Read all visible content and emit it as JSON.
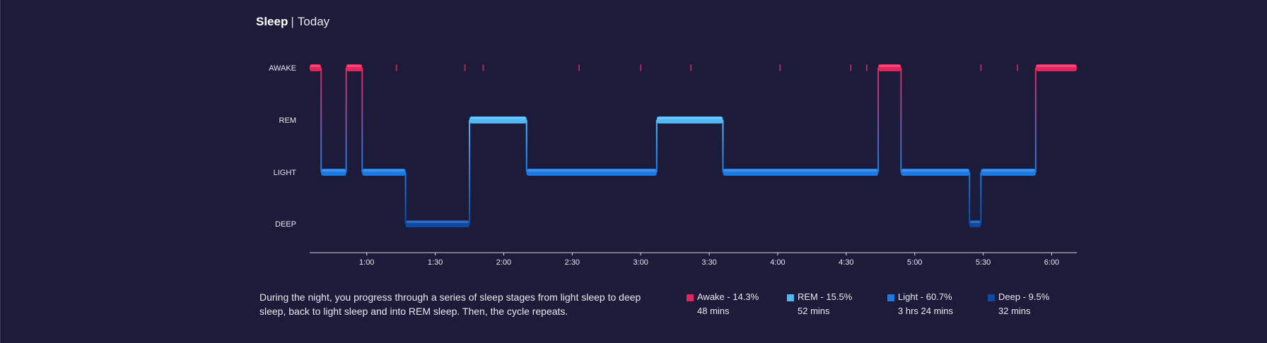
{
  "header": {
    "title": "Sleep",
    "separator": "|",
    "subtitle": "Today"
  },
  "description": "During the night, you progress through a series of sleep stages from light sleep to deep sleep, back to light sleep and into REM sleep. Then, the cycle repeats.",
  "legend": [
    {
      "label": "Awake - 14.3%",
      "duration": "48 mins",
      "color": "#e8245c"
    },
    {
      "label": "REM - 15.5%",
      "duration": "52 mins",
      "color": "#4fb8f5"
    },
    {
      "label": "Light - 60.7%",
      "duration": "3 hrs 24 mins",
      "color": "#1a7be6"
    },
    {
      "label": "Deep - 9.5%",
      "duration": "32 mins",
      "color": "#0d4aa5"
    }
  ],
  "chart_data": {
    "type": "step",
    "stages": [
      "AWAKE",
      "REM",
      "LIGHT",
      "DEEP"
    ],
    "colors": {
      "AWAKE": "#e8245c",
      "REM": "#4fb8f5",
      "LIGHT": "#1a7be6",
      "DEEP": "#0d4aa5",
      "brief_awake": "#b0245a",
      "axis": "#d8d8e4",
      "background": "#1c1c3a"
    },
    "x_ticks": [
      "1:00",
      "1:30",
      "2:00",
      "2:30",
      "3:00",
      "3:30",
      "4:00",
      "4:30",
      "5:00",
      "5:30",
      "6:00"
    ],
    "x_range": [
      "0:35",
      "6:11"
    ],
    "segments": [
      {
        "stage": "AWAKE",
        "start": "0:35",
        "end": "0:40"
      },
      {
        "stage": "LIGHT",
        "start": "0:40",
        "end": "0:51"
      },
      {
        "stage": "AWAKE",
        "start": "0:51",
        "end": "0:58"
      },
      {
        "stage": "LIGHT",
        "start": "0:58",
        "end": "1:17"
      },
      {
        "stage": "DEEP",
        "start": "1:17",
        "end": "1:45"
      },
      {
        "stage": "REM",
        "start": "1:45",
        "end": "2:10"
      },
      {
        "stage": "LIGHT",
        "start": "2:10",
        "end": "3:07"
      },
      {
        "stage": "REM",
        "start": "3:07",
        "end": "3:36"
      },
      {
        "stage": "LIGHT",
        "start": "3:36",
        "end": "4:44"
      },
      {
        "stage": "AWAKE",
        "start": "4:44",
        "end": "4:54"
      },
      {
        "stage": "LIGHT",
        "start": "4:54",
        "end": "5:24"
      },
      {
        "stage": "DEEP",
        "start": "5:24",
        "end": "5:29"
      },
      {
        "stage": "LIGHT",
        "start": "5:29",
        "end": "5:53"
      },
      {
        "stage": "AWAKE",
        "start": "5:53",
        "end": "6:11"
      }
    ],
    "brief_awakenings": [
      "1:13",
      "1:43",
      "1:51",
      "2:33",
      "3:00",
      "3:22",
      "4:01",
      "4:32",
      "4:39",
      "5:29",
      "5:45"
    ]
  }
}
